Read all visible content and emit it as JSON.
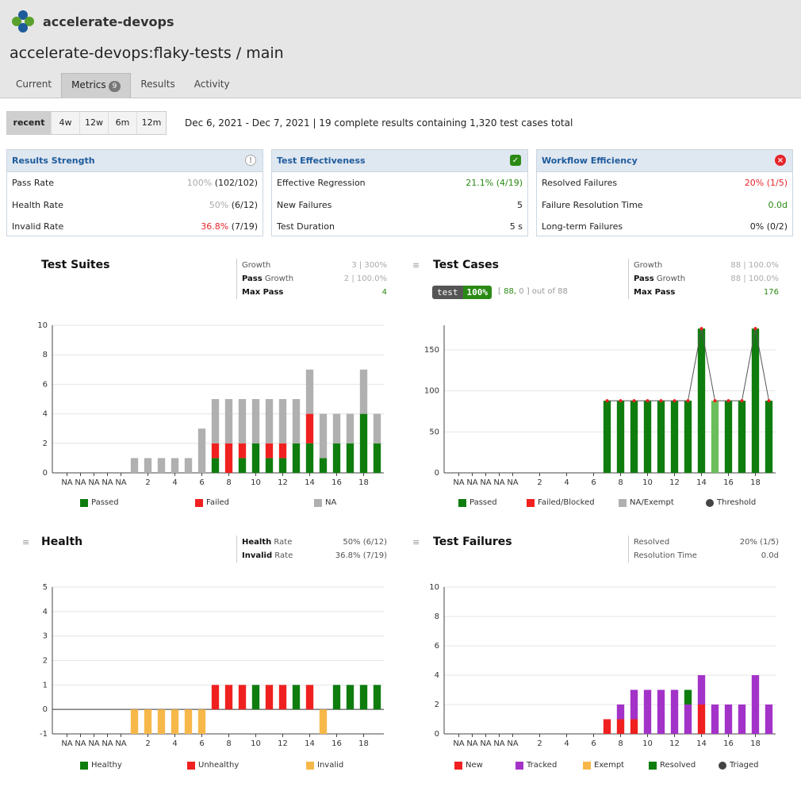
{
  "brand": {
    "name": "accelerate-devops"
  },
  "repo_title": "accelerate-devops:flaky-tests / main",
  "tabs": [
    {
      "label": "Current"
    },
    {
      "label": "Metrics",
      "badge": "9"
    },
    {
      "label": "Results"
    },
    {
      "label": "Activity"
    }
  ],
  "range": {
    "options": [
      "recent",
      "4w",
      "12w",
      "6m",
      "12m"
    ],
    "selected": "recent",
    "summary": "Dec 6, 2021 - Dec 7, 2021 | 19 complete results containing 1,320 test cases total"
  },
  "cards": {
    "results_strength": {
      "title": "Results Strength",
      "rows": [
        {
          "label": "Pass Rate",
          "pct": "100%",
          "detail": "(102/102)"
        },
        {
          "label": "Health Rate",
          "pct": "50%",
          "detail": "(6/12)"
        },
        {
          "label": "Invalid Rate",
          "pct": "36.8%",
          "detail": "(7/19)"
        }
      ]
    },
    "test_effectiveness": {
      "title": "Test Effectiveness",
      "rows": [
        {
          "label": "Effective Regression",
          "value": "21.1% (4/19)"
        },
        {
          "label": "New Failures",
          "value": "5"
        },
        {
          "label": "Test Duration",
          "value": "5 s"
        }
      ]
    },
    "workflow_efficiency": {
      "title": "Workflow Efficiency",
      "rows": [
        {
          "label": "Resolved Failures",
          "value": "20% (1/5)"
        },
        {
          "label": "Failure Resolution Time",
          "value": "0.0d"
        },
        {
          "label": "Long-term Failures",
          "value": "0% (0/2)"
        }
      ]
    }
  },
  "suites_panel": {
    "title": "Test Suites",
    "stats": [
      {
        "label": "Growth",
        "value": "3 | 300%"
      },
      {
        "label_bold": "Pass",
        "label": " Growth",
        "value": "2 | 100.0%"
      },
      {
        "label": "Max Pass",
        "value": "4"
      }
    ]
  },
  "cases_panel": {
    "title": "Test Cases",
    "pill_label": "test",
    "pill_pct": "100%",
    "pill_note_open": "[",
    "pill_note_pass": "88,",
    "pill_note_rest": "0 ] out of 88",
    "stats": [
      {
        "label": "Growth",
        "value": "88 | 100.0%"
      },
      {
        "label_bold": "Pass",
        "label": " Growth",
        "value": "88 | 100.0%"
      },
      {
        "label": "Max Pass",
        "value": "176"
      }
    ]
  },
  "health_panel": {
    "title": "Health",
    "stats": [
      {
        "label_bold": "Health",
        "label": " Rate",
        "value": "50% (6/12)"
      },
      {
        "label_bold": "Invalid",
        "label": " Rate",
        "value": "36.8% (7/19)"
      }
    ]
  },
  "failures_panel": {
    "title": "Test Failures",
    "stats": [
      {
        "label": "Resolved",
        "value": "20% (1/5)"
      },
      {
        "label": "Resolution Time",
        "value": "0.0d"
      }
    ]
  },
  "colors": {
    "pass": "#0e7d0e",
    "fail": "#f02020",
    "na": "#b0b0b0",
    "invalid": "#f7b84a",
    "tracked": "#a333c8",
    "resolved": "#0e7d0e"
  },
  "chart_data": [
    {
      "type": "bar",
      "title": "Test Suites",
      "categories": [
        "NA",
        "NA",
        "NA",
        "NA",
        "NA",
        "1",
        "2",
        "3",
        "4",
        "5",
        "6",
        "7",
        "8",
        "9",
        "10",
        "11",
        "12",
        "13",
        "14",
        "15",
        "16",
        "17",
        "18",
        "19"
      ],
      "tick_labels": [
        "NA",
        "NA",
        "NA",
        "NA",
        "NA",
        "2",
        "4",
        "6",
        "8",
        "10",
        "12",
        "14",
        "16",
        "18"
      ],
      "ylim": [
        0,
        10
      ],
      "yticks": [
        0,
        2,
        4,
        6,
        8,
        10
      ],
      "stacked": true,
      "series": [
        {
          "name": "Passed",
          "values": [
            0,
            0,
            0,
            0,
            0,
            0,
            0,
            0,
            0,
            0,
            0,
            1,
            0,
            1,
            2,
            1,
            1,
            2,
            2,
            1,
            2,
            2,
            4,
            2
          ]
        },
        {
          "name": "Failed",
          "values": [
            0,
            0,
            0,
            0,
            0,
            0,
            0,
            0,
            0,
            0,
            0,
            1,
            2,
            1,
            0,
            1,
            1,
            0,
            2,
            0,
            0,
            0,
            0,
            0
          ]
        },
        {
          "name": "NA",
          "values": [
            0,
            0,
            0,
            0,
            0,
            1,
            1,
            1,
            1,
            1,
            3,
            3,
            3,
            3,
            3,
            3,
            3,
            3,
            3,
            3,
            2,
            2,
            3,
            2
          ]
        }
      ],
      "legend": [
        "Passed",
        "Failed",
        "NA"
      ]
    },
    {
      "type": "bar",
      "title": "Test Cases",
      "categories": [
        "NA",
        "NA",
        "NA",
        "NA",
        "NA",
        "1",
        "2",
        "3",
        "4",
        "5",
        "6",
        "7",
        "8",
        "9",
        "10",
        "11",
        "12",
        "13",
        "14",
        "15",
        "16",
        "17",
        "18",
        "19"
      ],
      "tick_labels": [
        "NA",
        "NA",
        "NA",
        "NA",
        "NA",
        "2",
        "4",
        "6",
        "8",
        "10",
        "12",
        "14",
        "16",
        "18"
      ],
      "ylim": [
        0,
        180
      ],
      "yticks": [
        0,
        50,
        100,
        150
      ],
      "series": [
        {
          "name": "Passed",
          "values": [
            0,
            0,
            0,
            0,
            0,
            0,
            0,
            0,
            0,
            0,
            0,
            88,
            88,
            88,
            88,
            88,
            88,
            88,
            176,
            88,
            88,
            88,
            176,
            88
          ]
        },
        {
          "name": "Threshold",
          "values": [
            0,
            0,
            0,
            0,
            0,
            0,
            0,
            0,
            0,
            0,
            0,
            88,
            88,
            88,
            88,
            88,
            88,
            88,
            176,
            88,
            88,
            88,
            176,
            88
          ]
        }
      ],
      "legend": [
        "Passed",
        "Failed/Blocked",
        "NA/Exempt",
        "Threshold"
      ]
    },
    {
      "type": "bar",
      "title": "Health",
      "categories": [
        "NA",
        "NA",
        "NA",
        "NA",
        "NA",
        "1",
        "2",
        "3",
        "4",
        "5",
        "6",
        "7",
        "8",
        "9",
        "10",
        "11",
        "12",
        "13",
        "14",
        "15",
        "16",
        "17",
        "18",
        "19"
      ],
      "tick_labels": [
        "NA",
        "NA",
        "NA",
        "NA",
        "NA",
        "2",
        "4",
        "6",
        "8",
        "10",
        "12",
        "14",
        "16",
        "18"
      ],
      "ylim": [
        -1,
        5
      ],
      "yticks": [
        -1,
        0,
        1,
        2,
        3,
        4,
        5
      ],
      "series": [
        {
          "name": "Healthy",
          "values": [
            0,
            0,
            0,
            0,
            0,
            0,
            0,
            0,
            0,
            0,
            0,
            0,
            0,
            0,
            1,
            0,
            0,
            1,
            0,
            0,
            1,
            1,
            1,
            1
          ]
        },
        {
          "name": "Unhealthy",
          "values": [
            0,
            0,
            0,
            0,
            0,
            0,
            0,
            0,
            0,
            0,
            0,
            1,
            1,
            1,
            0,
            1,
            1,
            0,
            1,
            0,
            0,
            0,
            0,
            0
          ]
        },
        {
          "name": "Invalid",
          "values": [
            0,
            0,
            0,
            0,
            0,
            -1,
            -1,
            -1,
            -1,
            -1,
            -1,
            0,
            0,
            0,
            0,
            0,
            0,
            0,
            0,
            -1,
            0,
            0,
            0,
            0
          ]
        }
      ],
      "legend": [
        "Healthy",
        "Unhealthy",
        "Invalid"
      ]
    },
    {
      "type": "bar",
      "title": "Test Failures",
      "categories": [
        "NA",
        "NA",
        "NA",
        "NA",
        "NA",
        "1",
        "2",
        "3",
        "4",
        "5",
        "6",
        "7",
        "8",
        "9",
        "10",
        "11",
        "12",
        "13",
        "14",
        "15",
        "16",
        "17",
        "18",
        "19"
      ],
      "tick_labels": [
        "NA",
        "NA",
        "NA",
        "NA",
        "NA",
        "2",
        "4",
        "6",
        "8",
        "10",
        "12",
        "14",
        "16",
        "18"
      ],
      "ylim": [
        0,
        10
      ],
      "yticks": [
        0,
        2,
        4,
        6,
        8,
        10
      ],
      "stacked": true,
      "series": [
        {
          "name": "New",
          "values": [
            0,
            0,
            0,
            0,
            0,
            0,
            0,
            0,
            0,
            0,
            0,
            1,
            1,
            1,
            0,
            0,
            0,
            0,
            2,
            0,
            0,
            0,
            0,
            0
          ]
        },
        {
          "name": "Tracked",
          "values": [
            0,
            0,
            0,
            0,
            0,
            0,
            0,
            0,
            0,
            0,
            0,
            0,
            1,
            2,
            3,
            3,
            3,
            2,
            2,
            2,
            2,
            2,
            4,
            2
          ]
        },
        {
          "name": "Resolved",
          "values": [
            0,
            0,
            0,
            0,
            0,
            0,
            0,
            0,
            0,
            0,
            0,
            0,
            0,
            0,
            0,
            0,
            0,
            1,
            0,
            0,
            0,
            0,
            0,
            0
          ]
        }
      ],
      "legend": [
        "New",
        "Tracked",
        "Exempt",
        "Resolved",
        "Triaged"
      ]
    }
  ]
}
